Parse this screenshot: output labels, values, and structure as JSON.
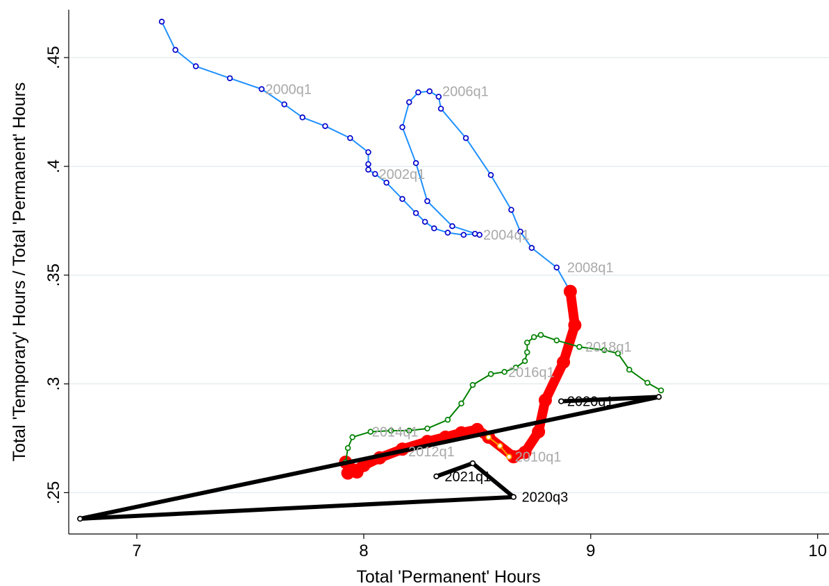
{
  "chart_data": {
    "type": "line",
    "title": "",
    "xlabel": "Total 'Permanent' Hours",
    "ylabel": "Total 'Temporary' Hours / Total 'Permanent' Hours",
    "xlim": [
      6.7,
      10.05
    ],
    "ylim": [
      0.231,
      0.472
    ],
    "x_ticks": [
      7,
      8,
      9,
      10
    ],
    "x_tick_labels": [
      "7",
      "8",
      "9",
      "10"
    ],
    "y_ticks": [
      0.25,
      0.3,
      0.35,
      0.4,
      0.45
    ],
    "y_tick_labels": [
      ".25",
      ".3",
      ".35",
      ".4",
      ".45"
    ],
    "grid": "horizontal",
    "legend": "none",
    "series": [
      {
        "line_color": "#1e90ff",
        "marker_color": "#0000cc",
        "marker": "hollow-circle",
        "width": 2,
        "points": [
          [
            7.11,
            0.4665
          ],
          [
            7.17,
            0.4535
          ],
          [
            7.26,
            0.446
          ],
          [
            7.41,
            0.4405
          ],
          [
            7.55,
            0.4355
          ],
          [
            7.65,
            0.4285
          ],
          [
            7.73,
            0.4225
          ],
          [
            7.83,
            0.4185
          ],
          [
            7.94,
            0.413
          ],
          [
            8.02,
            0.4065
          ],
          [
            8.02,
            0.401
          ],
          [
            8.02,
            0.3985
          ],
          [
            8.05,
            0.3965
          ],
          [
            8.1,
            0.3925
          ],
          [
            8.17,
            0.385
          ],
          [
            8.23,
            0.3785
          ],
          [
            8.27,
            0.3745
          ],
          [
            8.31,
            0.3715
          ],
          [
            8.37,
            0.3695
          ],
          [
            8.44,
            0.3685
          ],
          [
            8.49,
            0.369
          ],
          [
            8.51,
            0.3685
          ],
          [
            8.39,
            0.3725
          ],
          [
            8.28,
            0.384
          ],
          [
            8.23,
            0.4015
          ],
          [
            8.17,
            0.418
          ],
          [
            8.2,
            0.4295
          ],
          [
            8.24,
            0.434
          ],
          [
            8.29,
            0.4345
          ],
          [
            8.33,
            0.432
          ],
          [
            8.34,
            0.4265
          ],
          [
            8.45,
            0.413
          ],
          [
            8.56,
            0.396
          ],
          [
            8.65,
            0.38
          ],
          [
            8.69,
            0.37
          ],
          [
            8.74,
            0.3625
          ],
          [
            8.85,
            0.3535
          ],
          [
            8.91,
            0.3425
          ]
        ]
      },
      {
        "line_color": "#ff0000",
        "marker_color": "#ff0000",
        "marker": "solid-circle",
        "width": 14,
        "points": [
          [
            8.91,
            0.3425
          ],
          [
            8.93,
            0.327
          ],
          [
            8.88,
            0.31
          ],
          [
            8.8,
            0.2925
          ],
          [
            8.77,
            0.278
          ],
          [
            8.71,
            0.2685
          ],
          [
            8.66,
            0.2665
          ],
          [
            8.55,
            0.2755
          ],
          [
            8.5,
            0.279
          ],
          [
            8.43,
            0.2775
          ],
          [
            8.36,
            0.2755
          ],
          [
            8.28,
            0.2735
          ],
          [
            8.17,
            0.27
          ],
          [
            8.07,
            0.266
          ],
          [
            8.0,
            0.2625
          ],
          [
            7.93,
            0.259
          ],
          [
            7.97,
            0.2595
          ],
          [
            7.92,
            0.264
          ]
        ]
      },
      {
        "line_color": "#ffa500",
        "marker_color": "#ffa500",
        "marker": "hollow-circle",
        "width": 2,
        "points": [
          [
            8.55,
            0.2755
          ],
          [
            8.6,
            0.2715
          ],
          [
            8.64,
            0.2665
          ]
        ]
      },
      {
        "line_color": "#008000",
        "marker_color": "#008000",
        "marker": "hollow-circle",
        "width": 2,
        "points": [
          [
            7.92,
            0.264
          ],
          [
            7.93,
            0.2705
          ],
          [
            7.95,
            0.2755
          ],
          [
            8.03,
            0.278
          ],
          [
            8.12,
            0.2785
          ],
          [
            8.2,
            0.2785
          ],
          [
            8.28,
            0.2795
          ],
          [
            8.37,
            0.2835
          ],
          [
            8.43,
            0.291
          ],
          [
            8.48,
            0.2995
          ],
          [
            8.56,
            0.3045
          ],
          [
            8.62,
            0.3055
          ],
          [
            8.67,
            0.3075
          ],
          [
            8.71,
            0.3105
          ],
          [
            8.72,
            0.3145
          ],
          [
            8.72,
            0.319
          ],
          [
            8.75,
            0.3215
          ],
          [
            8.78,
            0.3225
          ],
          [
            8.85,
            0.32
          ],
          [
            8.95,
            0.317
          ],
          [
            9.06,
            0.3155
          ],
          [
            9.12,
            0.314
          ],
          [
            9.17,
            0.3065
          ],
          [
            9.25,
            0.3005
          ],
          [
            9.31,
            0.297
          ]
        ]
      },
      {
        "line_color": "#000000",
        "marker_color": "#000000",
        "marker": "hollow-circle",
        "width": 6,
        "points": [
          [
            8.87,
            0.292
          ],
          [
            9.3,
            0.294
          ],
          [
            6.75,
            0.238
          ],
          [
            8.66,
            0.248
          ],
          [
            8.48,
            0.2635
          ],
          [
            8.32,
            0.2575
          ]
        ]
      }
    ],
    "annotations": [
      {
        "text": "2000q1",
        "x": 7.56,
        "y": 0.4355,
        "color": "#a9a9a9"
      },
      {
        "text": "2002q1",
        "x": 8.06,
        "y": 0.3965,
        "color": "#a9a9a9"
      },
      {
        "text": "2004q1",
        "x": 8.52,
        "y": 0.3685,
        "color": "#a9a9a9"
      },
      {
        "text": "2006q1",
        "x": 8.34,
        "y": 0.4345,
        "color": "#a9a9a9"
      },
      {
        "text": "2008q1",
        "x": 8.89,
        "y": 0.3535,
        "color": "#a9a9a9"
      },
      {
        "text": "2010q1",
        "x": 8.66,
        "y": 0.2665,
        "color": "#a9a9a9"
      },
      {
        "text": "2012q1",
        "x": 8.19,
        "y": 0.269,
        "color": "#a9a9a9"
      },
      {
        "text": "2014q1",
        "x": 8.03,
        "y": 0.278,
        "color": "#a9a9a9"
      },
      {
        "text": "2016q1",
        "x": 8.63,
        "y": 0.3055,
        "color": "#a9a9a9"
      },
      {
        "text": "2018q1",
        "x": 8.97,
        "y": 0.317,
        "color": "#a9a9a9"
      },
      {
        "text": "2020q1",
        "x": 8.89,
        "y": 0.292,
        "color": "#000000"
      },
      {
        "text": "2020q3",
        "x": 8.69,
        "y": 0.248,
        "color": "#000000"
      },
      {
        "text": "2021q1",
        "x": 8.35,
        "y": 0.2575,
        "color": "#000000"
      }
    ]
  }
}
